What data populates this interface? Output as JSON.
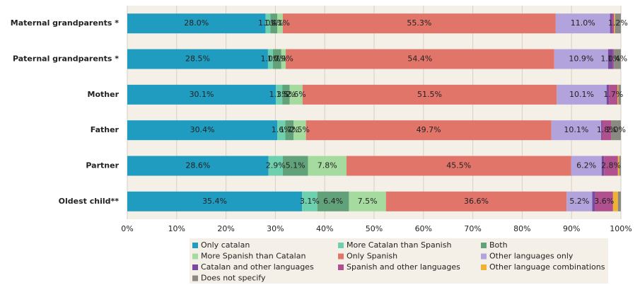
{
  "chart_data": {
    "type": "stacked_bar_horizontal",
    "categories": [
      "Maternal grandparents *",
      "Paternal grandparents *",
      "Mother",
      "Father",
      "Partner",
      "Oldest child**"
    ],
    "series": [
      {
        "name": "Only catalan",
        "color": "#1f9cc0",
        "values": [
          28.0,
          28.5,
          30.1,
          30.4,
          28.6,
          35.4
        ],
        "value_labels": [
          "28.0%",
          "28.5%",
          "30.1%",
          "30.4%",
          "28.6%",
          "35.4%"
        ]
      },
      {
        "name": "More Catalan than Spanish",
        "color": "#6fd0b0",
        "values": [
          1.0,
          1.0,
          1.3,
          1.6,
          2.9,
          3.1
        ],
        "value_labels": [
          "1.0%",
          "1.0%",
          "1.3%",
          "1.6%",
          "2.9%",
          "3.1%"
        ]
      },
      {
        "name": "Both",
        "color": "#62a27a",
        "values": [
          1.4,
          1.7,
          1.5,
          1.7,
          5.1,
          6.4
        ],
        "value_labels": [
          "1.4%",
          "1.7%",
          "1.5%",
          "1.7%",
          "5.1%",
          "6.4%"
        ]
      },
      {
        "name": "More Spanish than Catalan",
        "color": "#a6dba0",
        "values": [
          1.1,
          0.9,
          2.6,
          2.5,
          7.8,
          7.5
        ],
        "value_labels": [
          "1.1%",
          "0.9%",
          "2.6%",
          "2.5%",
          "7.8%",
          "7.5%"
        ]
      },
      {
        "name": "Only Spanish",
        "color": "#e2756a",
        "values": [
          55.3,
          54.4,
          51.5,
          49.7,
          45.5,
          36.6
        ],
        "value_labels": [
          "55.3%",
          "54.4%",
          "51.5%",
          "49.7%",
          "45.5%",
          "36.6%"
        ]
      },
      {
        "name": "Other languages only",
        "color": "#b3a3dd",
        "values": [
          11.0,
          10.9,
          10.1,
          10.1,
          6.2,
          5.2
        ],
        "value_labels": [
          "11.0%",
          "10.9%",
          "10.1%",
          "10.1%",
          "6.2%",
          "5.2%"
        ]
      },
      {
        "name": "Catalan and other languages",
        "color": "#7a4a9e",
        "values": [
          0.4,
          1.0,
          0.5,
          0.2,
          0.5,
          0.6
        ],
        "value_labels": [
          null,
          "1.0%",
          null,
          null,
          null,
          null
        ]
      },
      {
        "name": "Spanish and other languages",
        "color": "#b0508f",
        "values": [
          0.4,
          0.2,
          1.7,
          1.8,
          2.8,
          3.6
        ],
        "value_labels": [
          null,
          null,
          "1.7%",
          "1.8%",
          "2.8%",
          "3.6%"
        ]
      },
      {
        "name": "Other language combinations",
        "color": "#f0b232",
        "values": [
          0.2,
          0,
          0.2,
          0,
          0.3,
          1.0
        ],
        "value_labels": [
          null,
          null,
          null,
          null,
          null,
          null
        ]
      },
      {
        "name": "Does not specify",
        "color": "#8a8a82",
        "values": [
          1.2,
          1.4,
          0.5,
          2.0,
          0.3,
          0.6
        ],
        "value_labels": [
          "1.2%",
          "1.4%",
          null,
          "2.0%",
          null,
          null
        ]
      }
    ],
    "xlim": [
      0,
      100
    ],
    "xticks": [
      {
        "value": 0,
        "label": "0%"
      },
      {
        "value": 10,
        "label": "10%"
      },
      {
        "value": 20,
        "label": "20%"
      },
      {
        "value": 30,
        "label": "30%"
      },
      {
        "value": 40,
        "label": "40%"
      },
      {
        "value": 50,
        "label": "50%"
      },
      {
        "value": 60,
        "label": "60%"
      },
      {
        "value": 70,
        "label": "70%"
      },
      {
        "value": 80,
        "label": "80%"
      },
      {
        "value": 90,
        "label": "90%"
      },
      {
        "value": 100,
        "label": "100%"
      }
    ],
    "grid": true,
    "legend": "bottom"
  }
}
